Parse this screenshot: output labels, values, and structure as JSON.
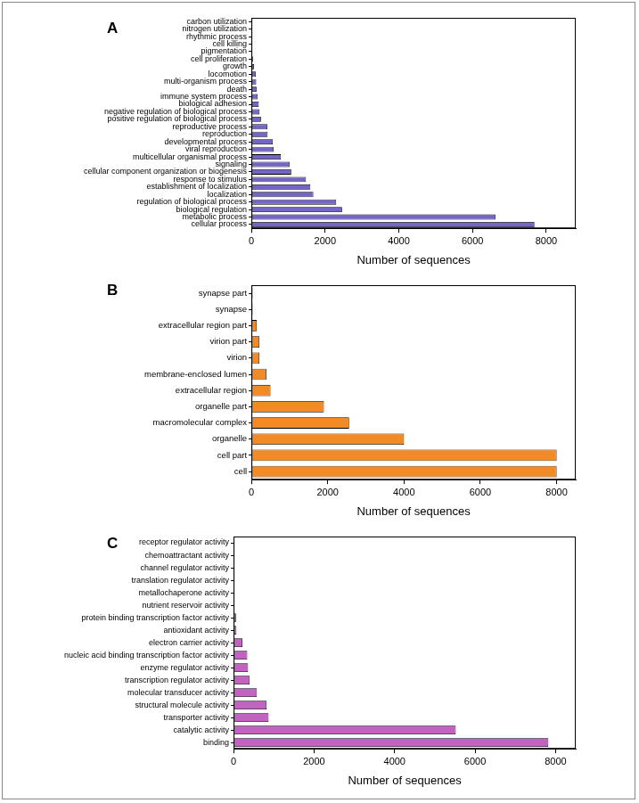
{
  "chart_data": [
    {
      "type": "bar",
      "orientation": "horizontal",
      "title": "A",
      "x_label": "Number of sequences",
      "categories": [
        "carbon utilization",
        "nitrogen utilization",
        "rhythmic process",
        "cell killing",
        "pigmentation",
        "cell proliferation",
        "growth",
        "locomotion",
        "multi-organism process",
        "death",
        "immune system process",
        "biological adhesion",
        "negative regulation of biological process",
        "positive regulation of biological process",
        "reproductive process",
        "reproduction",
        "developmental process",
        "viral reproduction",
        "multicellular organismal process",
        "signaling",
        "cellular component organization or biogenesis",
        "response to stimulus",
        "establishment of localization",
        "localization",
        "regulation of biological process",
        "biological regulation",
        "metabolic process",
        "cellular process"
      ],
      "values": [
        2,
        3,
        5,
        10,
        20,
        50,
        70,
        120,
        130,
        140,
        170,
        200,
        220,
        260,
        430,
        440,
        580,
        600,
        800,
        1040,
        1080,
        1480,
        1600,
        1680,
        2300,
        2460,
        6620,
        7680
      ],
      "color": "#7466c4",
      "xlim": [
        0,
        8800
      ],
      "xticks": [
        0,
        2000,
        4000,
        6000,
        8000
      ],
      "grid": false
    },
    {
      "type": "bar",
      "orientation": "horizontal",
      "title": "B",
      "x_label": "Number of sequences",
      "categories": [
        "synapse part",
        "synapse",
        "extracellular region part",
        "virion part",
        "virion",
        "membrane-enclosed lumen",
        "extracellular region",
        "organelle part",
        "macromolecular complex",
        "organelle",
        "cell part",
        "cell"
      ],
      "values": [
        30,
        30,
        140,
        210,
        210,
        390,
        500,
        1900,
        2560,
        4000,
        8000,
        8000
      ],
      "color": "#f28a26",
      "xlim": [
        0,
        8500
      ],
      "xticks": [
        0,
        2000,
        4000,
        6000,
        8000
      ],
      "grid": false
    },
    {
      "type": "bar",
      "orientation": "horizontal",
      "title": "C",
      "x_label": "Number of sequences",
      "categories": [
        "receptor regulator activity",
        "chemoattractant activity",
        "channel regulator activity",
        "translation regulator activity",
        "metallochaperone activity",
        "nutrient reservoir activity",
        "protein binding transcription factor activity",
        "antioxidant activity",
        "electron carrier activity",
        "nucleic acid binding transcription factor activity",
        "enzyme regulator activity",
        "transcription regulator activity",
        "molecular transducer activity",
        "structural molecule activity",
        "transporter activity",
        "catalytic activity",
        "binding"
      ],
      "values": [
        2,
        2,
        3,
        5,
        5,
        10,
        60,
        70,
        220,
        340,
        360,
        400,
        580,
        820,
        870,
        5520,
        7820
      ],
      "color": "#c462c2",
      "xlim": [
        0,
        8500
      ],
      "xticks": [
        0,
        2000,
        4000,
        6000,
        8000
      ],
      "grid": false
    }
  ]
}
